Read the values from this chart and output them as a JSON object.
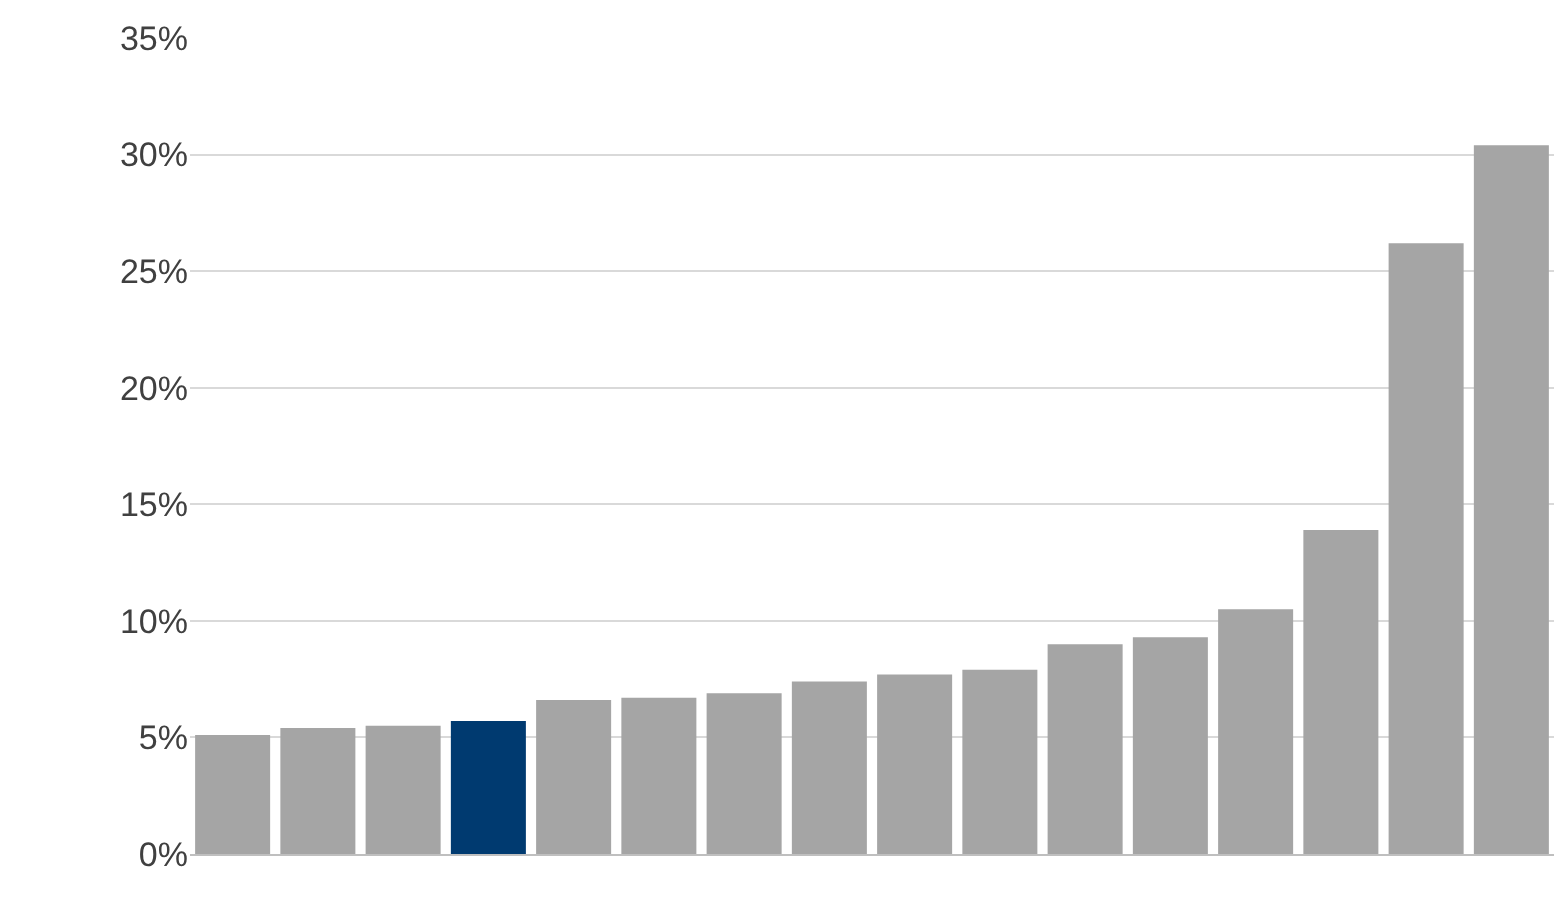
{
  "chart_data": {
    "type": "bar",
    "categories": [
      null,
      null,
      null,
      null,
      null,
      null,
      null,
      null,
      null,
      null,
      null,
      null,
      null,
      null,
      null,
      null
    ],
    "values": [
      5.1,
      5.4,
      5.5,
      5.7,
      6.6,
      6.7,
      6.9,
      7.4,
      7.7,
      7.9,
      9.0,
      9.3,
      10.5,
      13.9,
      26.2,
      30.4
    ],
    "colors": [
      "#a5a5a5",
      "#a5a5a5",
      "#a5a5a5",
      "#003a70",
      "#a5a5a5",
      "#a5a5a5",
      "#a5a5a5",
      "#a5a5a5",
      "#a5a5a5",
      "#a5a5a5",
      "#a5a5a5",
      "#a5a5a5",
      "#a5a5a5",
      "#a5a5a5",
      "#a5a5a5",
      "#a5a5a5"
    ],
    "ylim": [
      0,
      35
    ],
    "yticks": [
      {
        "value": 0,
        "label": "0%"
      },
      {
        "value": 5,
        "label": "5%"
      },
      {
        "value": 10,
        "label": "10%"
      },
      {
        "value": 15,
        "label": "15%"
      },
      {
        "value": 20,
        "label": "20%"
      },
      {
        "value": 25,
        "label": "25%"
      },
      {
        "value": 30,
        "label": "30%"
      },
      {
        "value": 35,
        "label": "35%"
      }
    ],
    "grid": "y"
  }
}
